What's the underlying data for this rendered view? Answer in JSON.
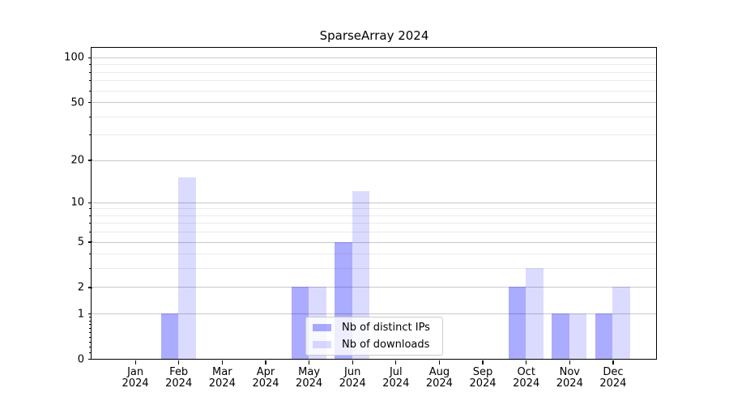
{
  "chart_data": {
    "type": "bar",
    "title": "SparseArray 2024",
    "x_axis": {
      "categories": [
        {
          "month": "Jan",
          "year": "2024"
        },
        {
          "month": "Feb",
          "year": "2024"
        },
        {
          "month": "Mar",
          "year": "2024"
        },
        {
          "month": "Apr",
          "year": "2024"
        },
        {
          "month": "May",
          "year": "2024"
        },
        {
          "month": "Jun",
          "year": "2024"
        },
        {
          "month": "Jul",
          "year": "2024"
        },
        {
          "month": "Aug",
          "year": "2024"
        },
        {
          "month": "Sep",
          "year": "2024"
        },
        {
          "month": "Oct",
          "year": "2024"
        },
        {
          "month": "Nov",
          "year": "2024"
        },
        {
          "month": "Dec",
          "year": "2024"
        }
      ]
    },
    "series": [
      {
        "name": "Nb of distinct IPs",
        "color": "rgba(0,0,255,0.33)",
        "color_hex": "#aaaaf7",
        "values": [
          0,
          1,
          0,
          0,
          2,
          5,
          0,
          0,
          0,
          2,
          1,
          1
        ]
      },
      {
        "name": "Nb of downloads",
        "color": "rgba(0,0,255,0.14)",
        "color_hex": "#dcdcf9",
        "values": [
          0,
          15,
          0,
          0,
          2,
          12,
          0,
          0,
          0,
          3,
          1,
          2
        ]
      }
    ],
    "y_axis": {
      "scale": "log1p",
      "ylim": [
        0,
        116
      ],
      "major_ticks": [
        0,
        1,
        2,
        5,
        10,
        20,
        50,
        100
      ],
      "minor_gridlines": [
        3,
        4,
        6,
        7,
        8,
        9,
        30,
        40,
        60,
        70,
        80,
        90
      ],
      "minor_ticks": [
        0.1,
        0.2,
        0.3,
        0.4,
        0.5,
        0.6,
        0.7,
        0.8,
        0.9,
        3,
        4,
        6,
        7,
        8,
        9,
        30,
        40,
        60,
        70,
        80,
        90
      ]
    },
    "grid": true,
    "legend": {
      "position": "lower-center",
      "entries": [
        "Nb of distinct IPs",
        "Nb of downloads"
      ]
    },
    "colors": {
      "axis": "#000000",
      "text": "#000000",
      "major_grid": "#c8c8c8",
      "minor_grid": "#ebebeb",
      "legend_border": "#cccccc"
    }
  }
}
